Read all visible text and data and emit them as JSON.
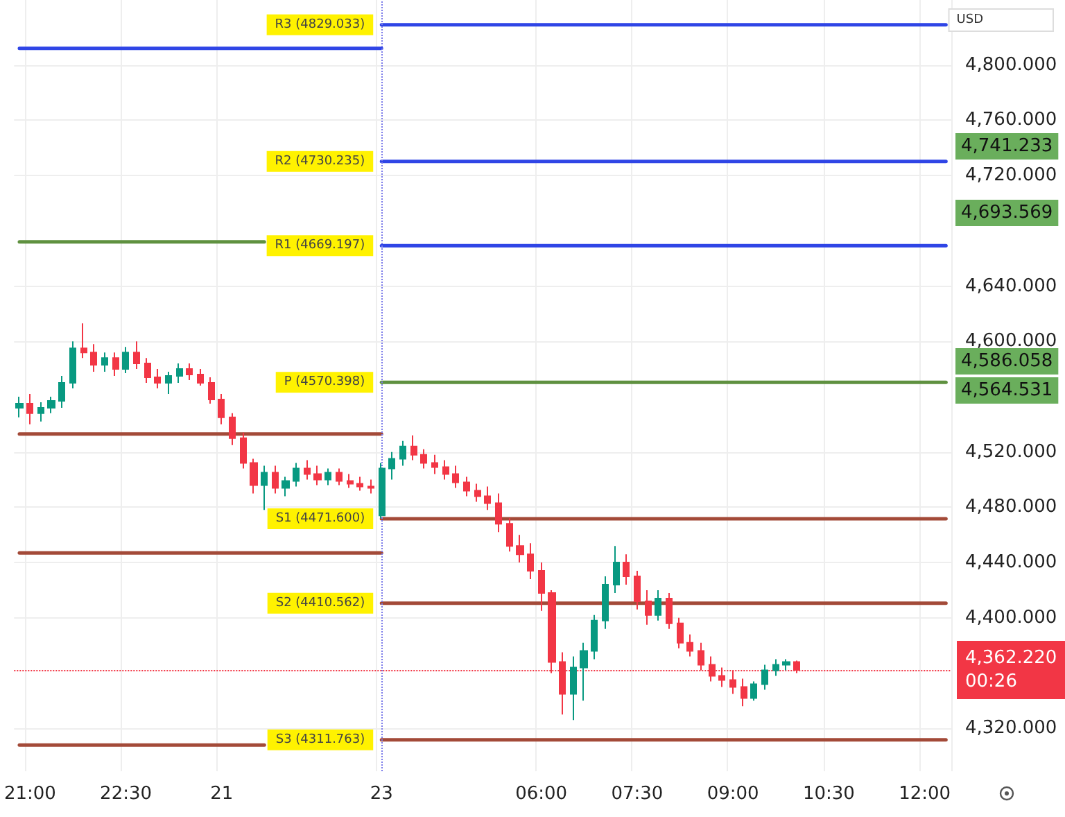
{
  "chart_data": {
    "type": "candlestick",
    "categories": [
      null,
      "21:00",
      null,
      null,
      null,
      null,
      null,
      null,
      null,
      null,
      "22:30",
      null,
      null,
      null,
      null,
      null,
      null,
      null,
      null,
      "21",
      null,
      null,
      null,
      null,
      null,
      null,
      null,
      null,
      null,
      null,
      null,
      null,
      null,
      null,
      "23",
      null,
      null,
      null,
      null,
      null,
      null,
      null,
      null,
      null,
      null,
      null,
      null,
      null,
      null,
      "06:00",
      null,
      null,
      null,
      null,
      null,
      null,
      null,
      null,
      "07:30",
      null,
      null,
      null,
      null,
      null,
      null,
      null,
      null,
      "09:00",
      null,
      null,
      null,
      null,
      null,
      null,
      null,
      null,
      "10:30",
      null,
      null,
      null,
      null,
      null,
      null,
      null,
      null,
      "12:00",
      null,
      null
    ],
    "ylim": [
      4289,
      4847
    ],
    "yticks": [
      {
        "value": 4320,
        "label": "4,320.000"
      },
      {
        "value": 4400,
        "label": "4,400.000"
      },
      {
        "value": 4440,
        "label": "4,440.000"
      },
      {
        "value": 4480,
        "label": "4,480.000"
      },
      {
        "value": 4520,
        "label": "4,520.000"
      },
      {
        "value": 4600,
        "label": "4,600.000"
      },
      {
        "value": 4640,
        "label": "4,640.000"
      },
      {
        "value": 4720,
        "label": "4,720.000"
      },
      {
        "value": 4760,
        "label": "4,760.000"
      },
      {
        "value": 4800,
        "label": "4,800.000"
      }
    ],
    "grid": true,
    "series": [
      {
        "ohlc": [
          [
            4552,
            4560,
            4545,
            4555
          ],
          [
            4555,
            4562,
            4540,
            4548
          ],
          [
            4548,
            4556,
            4542,
            4552
          ],
          [
            4552,
            4560,
            4548,
            4557
          ],
          [
            4557,
            4575,
            4552,
            4570
          ],
          [
            4570,
            4600,
            4566,
            4595
          ],
          [
            4595,
            4613,
            4588,
            4592
          ],
          [
            4592,
            4598,
            4578,
            4583
          ],
          [
            4583,
            4592,
            4578,
            4588
          ],
          [
            4588,
            4592,
            4575,
            4580
          ],
          [
            4580,
            4596,
            4577,
            4592
          ],
          [
            4592,
            4600,
            4580,
            4584
          ],
          [
            4584,
            4588,
            4570,
            4574
          ],
          [
            4574,
            4580,
            4566,
            4570
          ],
          [
            4570,
            4578,
            4562,
            4575
          ],
          [
            4575,
            4584,
            4570,
            4580
          ],
          [
            4580,
            4584,
            4572,
            4576
          ],
          [
            4576,
            4580,
            4568,
            4570
          ],
          [
            4570,
            4574,
            4555,
            4558
          ],
          [
            4558,
            4562,
            4540,
            4545
          ],
          [
            4545,
            4548,
            4525,
            4530
          ],
          [
            4530,
            4534,
            4508,
            4512
          ],
          [
            4512,
            4515,
            4490,
            4496
          ],
          [
            4496,
            4510,
            4478,
            4505
          ],
          [
            4505,
            4510,
            4490,
            4494
          ],
          [
            4494,
            4502,
            4488,
            4499
          ],
          [
            4499,
            4512,
            4495,
            4508
          ],
          [
            4508,
            4514,
            4500,
            4504
          ],
          [
            4504,
            4510,
            4496,
            4500
          ],
          [
            4500,
            4508,
            4496,
            4505
          ],
          [
            4505,
            4508,
            4496,
            4499
          ],
          [
            4499,
            4504,
            4494,
            4497
          ],
          [
            4497,
            4502,
            4492,
            4495
          ],
          [
            4495,
            4500,
            4490,
            4494
          ],
          [
            4474,
            4512,
            4472,
            4508
          ],
          [
            4508,
            4520,
            4500,
            4515
          ],
          [
            4515,
            4528,
            4510,
            4524
          ],
          [
            4524,
            4532,
            4514,
            4518
          ],
          [
            4518,
            4522,
            4508,
            4512
          ],
          [
            4512,
            4518,
            4504,
            4509
          ],
          [
            4509,
            4514,
            4500,
            4504
          ],
          [
            4504,
            4510,
            4494,
            4498
          ],
          [
            4498,
            4502,
            4488,
            4492
          ],
          [
            4492,
            4497,
            4484,
            4488
          ],
          [
            4488,
            4495,
            4478,
            4483
          ],
          [
            4483,
            4490,
            4462,
            4468
          ],
          [
            4468,
            4472,
            4448,
            4452
          ],
          [
            4452,
            4460,
            4440,
            4446
          ],
          [
            4446,
            4454,
            4428,
            4434
          ],
          [
            4434,
            4440,
            4405,
            4418
          ],
          [
            4418,
            4420,
            4360,
            4368
          ],
          [
            4368,
            4375,
            4330,
            4345
          ],
          [
            4345,
            4372,
            4326,
            4364
          ],
          [
            4364,
            4382,
            4340,
            4376
          ],
          [
            4376,
            4402,
            4370,
            4398
          ],
          [
            4398,
            4430,
            4392,
            4424
          ],
          [
            4424,
            4452,
            4418,
            4440
          ],
          [
            4440,
            4446,
            4424,
            4430
          ],
          [
            4430,
            4434,
            4406,
            4412
          ],
          [
            4412,
            4420,
            4395,
            4402
          ],
          [
            4402,
            4420,
            4398,
            4414
          ],
          [
            4414,
            4418,
            4392,
            4396
          ],
          [
            4396,
            4400,
            4378,
            4382
          ],
          [
            4382,
            4388,
            4372,
            4376
          ],
          [
            4376,
            4382,
            4362,
            4366
          ],
          [
            4366,
            4372,
            4354,
            4358
          ],
          [
            4358,
            4364,
            4350,
            4355
          ],
          [
            4355,
            4362,
            4345,
            4350
          ],
          [
            4350,
            4356,
            4336,
            4342
          ],
          [
            4342,
            4354,
            4340,
            4352
          ],
          [
            4352,
            4366,
            4348,
            4362
          ],
          [
            4362,
            4370,
            4358,
            4366
          ],
          [
            4366,
            4370,
            4362,
            4368
          ],
          [
            4368,
            4369,
            4360,
            4362.22
          ],
          null,
          null,
          null,
          null,
          null,
          null,
          null,
          null,
          null,
          null,
          null,
          null,
          null,
          null
        ]
      },
      {
        "type": "line",
        "color": "#2f45e6",
        "values": [
          4812,
          4812,
          4812,
          4812,
          4812,
          4812,
          4812,
          4812,
          4812,
          4812,
          4812,
          4812,
          4812,
          4812,
          4812,
          4812,
          4812,
          4812,
          4812,
          4812,
          4812,
          4812,
          4812,
          4812,
          4812,
          4812,
          4812,
          4812,
          4812,
          4812,
          4812,
          4812,
          4812,
          4812,
          4812,
          null,
          null,
          null,
          null,
          null,
          null,
          null,
          null,
          null,
          null,
          null,
          null,
          null,
          null,
          null,
          null,
          null,
          null,
          null,
          null,
          null,
          null,
          null,
          null,
          null,
          null,
          null,
          null,
          null,
          null,
          null,
          null,
          null,
          null,
          null,
          null,
          null,
          null,
          null,
          null,
          null,
          null,
          null,
          null,
          null,
          null,
          null,
          null,
          null,
          null,
          null,
          null,
          null
        ]
      },
      {
        "type": "line",
        "color": "#5f9140",
        "values": [
          4672,
          4672,
          4672,
          4672,
          4672,
          4672,
          4672,
          4672,
          4672,
          4672,
          4672,
          4672,
          4672,
          4672,
          4672,
          4672,
          4672,
          4672,
          4672,
          4672,
          4672,
          4672,
          4672,
          4672,
          null,
          null,
          null,
          null,
          null,
          null,
          null,
          null,
          null,
          null,
          null,
          null,
          null,
          null,
          null,
          null,
          null,
          null,
          null,
          null,
          null,
          null,
          null,
          null,
          null,
          null,
          null,
          null,
          null,
          null,
          null,
          null,
          null,
          null,
          null,
          null,
          null,
          null,
          null,
          null,
          null,
          null,
          null,
          null,
          null,
          null,
          null,
          null,
          null,
          null,
          null,
          null,
          null,
          null,
          null,
          null,
          null,
          null,
          null,
          null,
          null,
          null,
          null,
          null
        ]
      },
      {
        "type": "line",
        "color": "#a34a38",
        "values": [
          4533,
          4533,
          4533,
          4533,
          4533,
          4533,
          4533,
          4533,
          4533,
          4533,
          4533,
          4533,
          4533,
          4533,
          4533,
          4533,
          4533,
          4533,
          4533,
          4533,
          4533,
          4533,
          4533,
          4533,
          4533,
          4533,
          4533,
          4533,
          4533,
          4533,
          4533,
          4533,
          4533,
          4533,
          4533,
          null,
          null,
          null,
          null,
          null,
          null,
          null,
          null,
          null,
          null,
          null,
          null,
          null,
          null,
          null,
          null,
          null,
          null,
          null,
          null,
          null,
          null,
          null,
          null,
          null,
          null,
          null,
          null,
          null,
          null,
          null,
          null,
          null,
          null,
          null,
          null,
          null,
          null,
          null,
          null,
          null,
          null,
          null,
          null,
          null,
          null,
          null,
          null,
          null,
          null,
          null,
          null,
          null
        ]
      },
      {
        "type": "line",
        "color": "#a34a38",
        "values": [
          4447,
          4447,
          4447,
          4447,
          4447,
          4447,
          4447,
          4447,
          4447,
          4447,
          4447,
          4447,
          4447,
          4447,
          4447,
          4447,
          4447,
          4447,
          4447,
          4447,
          4447,
          4447,
          4447,
          4447,
          4447,
          4447,
          4447,
          4447,
          4447,
          4447,
          4447,
          4447,
          4447,
          4447,
          4447,
          null,
          null,
          null,
          null,
          null,
          null,
          null,
          null,
          null,
          null,
          null,
          null,
          null,
          null,
          null,
          null,
          null,
          null,
          null,
          null,
          null,
          null,
          null,
          null,
          null,
          null,
          null,
          null,
          null,
          null,
          null,
          null,
          null,
          null,
          null,
          null,
          null,
          null,
          null,
          null,
          null,
          null,
          null,
          null,
          null,
          null,
          null,
          null,
          null,
          null,
          null,
          null,
          null
        ]
      },
      {
        "type": "line",
        "color": "#a34a38",
        "values": [
          4308,
          4308,
          4308,
          4308,
          4308,
          4308,
          4308,
          4308,
          4308,
          4308,
          4308,
          4308,
          4308,
          4308,
          4308,
          4308,
          4308,
          4308,
          4308,
          4308,
          4308,
          4308,
          4308,
          4308,
          null,
          null,
          null,
          null,
          null,
          null,
          null,
          null,
          null,
          null,
          null,
          null,
          null,
          null,
          null,
          null,
          null,
          null,
          null,
          null,
          null,
          null,
          null,
          null,
          null,
          null,
          null,
          null,
          null,
          null,
          null,
          null,
          null,
          null,
          null,
          null,
          null,
          null,
          null,
          null,
          null,
          null,
          null,
          null,
          null,
          null,
          null,
          null,
          null,
          null,
          null,
          null,
          null,
          null,
          null,
          null,
          null,
          null,
          null,
          null,
          null,
          null,
          null,
          null
        ]
      },
      {
        "type": "line",
        "name": "R3 (4829.033)",
        "color": "#2f45e6",
        "values": [
          null,
          null,
          null,
          null,
          null,
          null,
          null,
          null,
          null,
          null,
          null,
          null,
          null,
          null,
          null,
          null,
          null,
          null,
          null,
          null,
          null,
          null,
          null,
          null,
          null,
          null,
          null,
          null,
          null,
          null,
          null,
          null,
          null,
          null,
          4829.033,
          4829.033,
          4829.033,
          4829.033,
          4829.033,
          4829.033,
          4829.033,
          4829.033,
          4829.033,
          4829.033,
          4829.033,
          4829.033,
          4829.033,
          4829.033,
          4829.033,
          4829.033,
          4829.033,
          4829.033,
          4829.033,
          4829.033,
          4829.033,
          4829.033,
          4829.033,
          4829.033,
          4829.033,
          4829.033,
          4829.033,
          4829.033,
          4829.033,
          4829.033,
          4829.033,
          4829.033,
          4829.033,
          4829.033,
          4829.033,
          4829.033,
          4829.033,
          4829.033,
          4829.033,
          4829.033,
          4829.033,
          4829.033,
          4829.033,
          4829.033,
          4829.033,
          4829.033,
          4829.033,
          4829.033,
          4829.033,
          4829.033,
          4829.033,
          4829.033,
          4829.033,
          4829.033
        ]
      },
      {
        "type": "line",
        "name": "R2 (4730.235)",
        "color": "#2f45e6",
        "values": [
          null,
          null,
          null,
          null,
          null,
          null,
          null,
          null,
          null,
          null,
          null,
          null,
          null,
          null,
          null,
          null,
          null,
          null,
          null,
          null,
          null,
          null,
          null,
          null,
          null,
          null,
          null,
          null,
          null,
          null,
          null,
          null,
          null,
          null,
          4730.235,
          4730.235,
          4730.235,
          4730.235,
          4730.235,
          4730.235,
          4730.235,
          4730.235,
          4730.235,
          4730.235,
          4730.235,
          4730.235,
          4730.235,
          4730.235,
          4730.235,
          4730.235,
          4730.235,
          4730.235,
          4730.235,
          4730.235,
          4730.235,
          4730.235,
          4730.235,
          4730.235,
          4730.235,
          4730.235,
          4730.235,
          4730.235,
          4730.235,
          4730.235,
          4730.235,
          4730.235,
          4730.235,
          4730.235,
          4730.235,
          4730.235,
          4730.235,
          4730.235,
          4730.235,
          4730.235,
          4730.235,
          4730.235,
          4730.235,
          4730.235,
          4730.235,
          4730.235,
          4730.235,
          4730.235,
          4730.235,
          4730.235,
          4730.235,
          4730.235,
          4730.235,
          4730.235
        ]
      },
      {
        "type": "line",
        "name": "R1 (4669.197)",
        "color": "#2f45e6",
        "values": [
          null,
          null,
          null,
          null,
          null,
          null,
          null,
          null,
          null,
          null,
          null,
          null,
          null,
          null,
          null,
          null,
          null,
          null,
          null,
          null,
          null,
          null,
          null,
          null,
          null,
          null,
          null,
          null,
          null,
          null,
          null,
          null,
          null,
          null,
          4669.197,
          4669.197,
          4669.197,
          4669.197,
          4669.197,
          4669.197,
          4669.197,
          4669.197,
          4669.197,
          4669.197,
          4669.197,
          4669.197,
          4669.197,
          4669.197,
          4669.197,
          4669.197,
          4669.197,
          4669.197,
          4669.197,
          4669.197,
          4669.197,
          4669.197,
          4669.197,
          4669.197,
          4669.197,
          4669.197,
          4669.197,
          4669.197,
          4669.197,
          4669.197,
          4669.197,
          4669.197,
          4669.197,
          4669.197,
          4669.197,
          4669.197,
          4669.197,
          4669.197,
          4669.197,
          4669.197,
          4669.197,
          4669.197,
          4669.197,
          4669.197,
          4669.197,
          4669.197,
          4669.197,
          4669.197,
          4669.197,
          4669.197,
          4669.197,
          4669.197,
          4669.197,
          4669.197
        ]
      },
      {
        "type": "line",
        "name": "P (4570.398)",
        "color": "#5f9140",
        "values": [
          null,
          null,
          null,
          null,
          null,
          null,
          null,
          null,
          null,
          null,
          null,
          null,
          null,
          null,
          null,
          null,
          null,
          null,
          null,
          null,
          null,
          null,
          null,
          null,
          null,
          null,
          null,
          null,
          null,
          null,
          null,
          null,
          null,
          null,
          4570.398,
          4570.398,
          4570.398,
          4570.398,
          4570.398,
          4570.398,
          4570.398,
          4570.398,
          4570.398,
          4570.398,
          4570.398,
          4570.398,
          4570.398,
          4570.398,
          4570.398,
          4570.398,
          4570.398,
          4570.398,
          4570.398,
          4570.398,
          4570.398,
          4570.398,
          4570.398,
          4570.398,
          4570.398,
          4570.398,
          4570.398,
          4570.398,
          4570.398,
          4570.398,
          4570.398,
          4570.398,
          4570.398,
          4570.398,
          4570.398,
          4570.398,
          4570.398,
          4570.398,
          4570.398,
          4570.398,
          4570.398,
          4570.398,
          4570.398,
          4570.398,
          4570.398,
          4570.398,
          4570.398,
          4570.398,
          4570.398,
          4570.398,
          4570.398,
          4570.398,
          4570.398,
          4570.398
        ]
      },
      {
        "type": "line",
        "name": "S1 (4471.600)",
        "color": "#a34a38",
        "values": [
          null,
          null,
          null,
          null,
          null,
          null,
          null,
          null,
          null,
          null,
          null,
          null,
          null,
          null,
          null,
          null,
          null,
          null,
          null,
          null,
          null,
          null,
          null,
          null,
          null,
          null,
          null,
          null,
          null,
          null,
          null,
          null,
          null,
          null,
          4471.6,
          4471.6,
          4471.6,
          4471.6,
          4471.6,
          4471.6,
          4471.6,
          4471.6,
          4471.6,
          4471.6,
          4471.6,
          4471.6,
          4471.6,
          4471.6,
          4471.6,
          4471.6,
          4471.6,
          4471.6,
          4471.6,
          4471.6,
          4471.6,
          4471.6,
          4471.6,
          4471.6,
          4471.6,
          4471.6,
          4471.6,
          4471.6,
          4471.6,
          4471.6,
          4471.6,
          4471.6,
          4471.6,
          4471.6,
          4471.6,
          4471.6,
          4471.6,
          4471.6,
          4471.6,
          4471.6,
          4471.6,
          4471.6,
          4471.6,
          4471.6,
          4471.6,
          4471.6,
          4471.6,
          4471.6,
          4471.6,
          4471.6,
          4471.6,
          4471.6,
          4471.6,
          4471.6
        ]
      },
      {
        "type": "line",
        "name": "S2 (4410.562)",
        "color": "#a34a38",
        "values": [
          null,
          null,
          null,
          null,
          null,
          null,
          null,
          null,
          null,
          null,
          null,
          null,
          null,
          null,
          null,
          null,
          null,
          null,
          null,
          null,
          null,
          null,
          null,
          null,
          null,
          null,
          null,
          null,
          null,
          null,
          null,
          null,
          null,
          null,
          4410.562,
          4410.562,
          4410.562,
          4410.562,
          4410.562,
          4410.562,
          4410.562,
          4410.562,
          4410.562,
          4410.562,
          4410.562,
          4410.562,
          4410.562,
          4410.562,
          4410.562,
          4410.562,
          4410.562,
          4410.562,
          4410.562,
          4410.562,
          4410.562,
          4410.562,
          4410.562,
          4410.562,
          4410.562,
          4410.562,
          4410.562,
          4410.562,
          4410.562,
          4410.562,
          4410.562,
          4410.562,
          4410.562,
          4410.562,
          4410.562,
          4410.562,
          4410.562,
          4410.562,
          4410.562,
          4410.562,
          4410.562,
          4410.562,
          4410.562,
          4410.562,
          4410.562,
          4410.562,
          4410.562,
          4410.562,
          4410.562,
          4410.562,
          4410.562,
          4410.562,
          4410.562,
          4410.562
        ]
      },
      {
        "type": "line",
        "name": "S3 (4311.763)",
        "color": "#a34a38",
        "values": [
          null,
          null,
          null,
          null,
          null,
          null,
          null,
          null,
          null,
          null,
          null,
          null,
          null,
          null,
          null,
          null,
          null,
          null,
          null,
          null,
          null,
          null,
          null,
          null,
          null,
          null,
          null,
          null,
          null,
          null,
          null,
          null,
          null,
          null,
          4311.763,
          4311.763,
          4311.763,
          4311.763,
          4311.763,
          4311.763,
          4311.763,
          4311.763,
          4311.763,
          4311.763,
          4311.763,
          4311.763,
          4311.763,
          4311.763,
          4311.763,
          4311.763,
          4311.763,
          4311.763,
          4311.763,
          4311.763,
          4311.763,
          4311.763,
          4311.763,
          4311.763,
          4311.763,
          4311.763,
          4311.763,
          4311.763,
          4311.763,
          4311.763,
          4311.763,
          4311.763,
          4311.763,
          4311.763,
          4311.763,
          4311.763,
          4311.763,
          4311.763,
          4311.763,
          4311.763,
          4311.763,
          4311.763,
          4311.763,
          4311.763,
          4311.763,
          4311.763,
          4311.763,
          4311.763,
          4311.763,
          4311.763,
          4311.763,
          4311.763,
          4311.763,
          4311.763
        ]
      }
    ],
    "ref_lines": [
      {
        "axis": "x",
        "value": "23",
        "color": "#7b7bea",
        "line_style": "dotted"
      },
      {
        "axis": "y",
        "value": 4362.22,
        "label": "4,362.220\n00:26",
        "color": "#f23645",
        "line_style": "dotted"
      }
    ],
    "annotations": [
      "USD",
      "4,741.233",
      "4,693.569",
      "4,586.058",
      "4,564.531"
    ]
  }
}
